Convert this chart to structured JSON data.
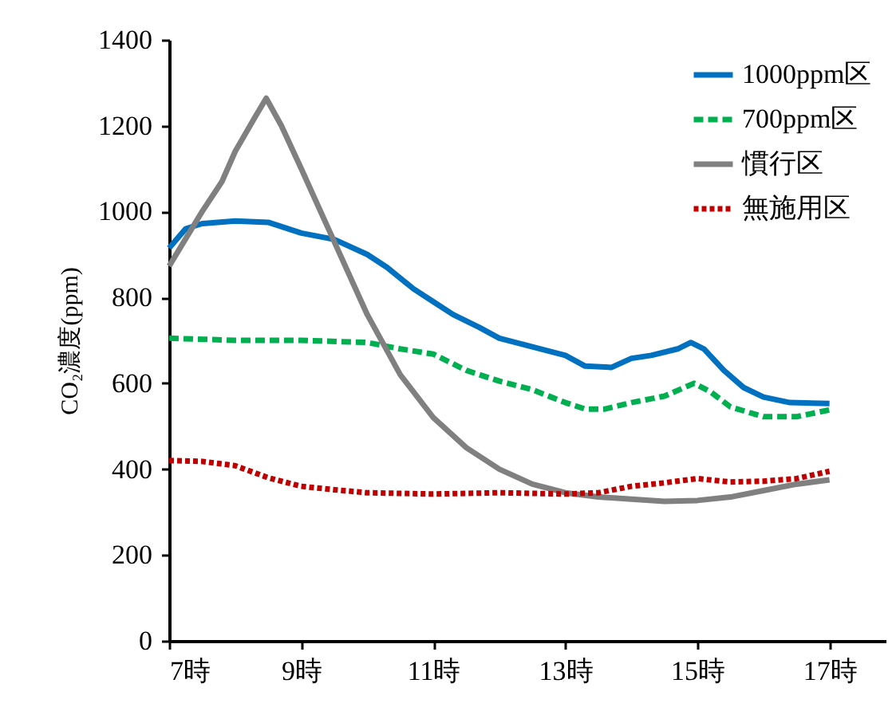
{
  "chart_data": {
    "type": "line",
    "ylabel": "CO₂濃度(ppm)",
    "xlim": [
      7,
      17.85
    ],
    "xticks": [
      {
        "value": 7,
        "label": "7時"
      },
      {
        "value": 9,
        "label": "9時"
      },
      {
        "value": 11,
        "label": "11時"
      },
      {
        "value": 13,
        "label": "13時"
      },
      {
        "value": 15,
        "label": "15時"
      },
      {
        "value": 17,
        "label": "17時"
      }
    ],
    "ylim": [
      0,
      1400
    ],
    "yticks": [
      0,
      200,
      400,
      600,
      800,
      1000,
      1200,
      1400
    ],
    "grid": false,
    "legend": "top right",
    "marker": "none",
    "series": [
      {
        "name": "1000ppm区",
        "color": "#0070c0",
        "line_style": "solid",
        "x": [
          7,
          7.25,
          7.5,
          8,
          8.5,
          9,
          9.5,
          10,
          10.3,
          10.7,
          11,
          11.3,
          11.7,
          12,
          12.5,
          13,
          13.3,
          13.7,
          14,
          14.3,
          14.7,
          14.9,
          15.1,
          15.4,
          15.7,
          16,
          16.4,
          17
        ],
        "values": [
          915,
          960,
          972,
          978,
          975,
          950,
          935,
          900,
          870,
          820,
          790,
          760,
          730,
          705,
          685,
          665,
          640,
          637,
          658,
          665,
          680,
          695,
          680,
          630,
          590,
          568,
          555,
          553
        ]
      },
      {
        "name": "700ppm区",
        "color": "#00b050",
        "line_style": "dashed",
        "x": [
          7,
          8,
          9,
          10,
          10.5,
          11,
          11.5,
          12,
          12.5,
          13,
          13.3,
          13.6,
          14,
          14.5,
          14.8,
          14.95,
          15.2,
          15.5,
          16,
          16.5,
          17
        ],
        "values": [
          705,
          700,
          700,
          695,
          680,
          668,
          630,
          605,
          585,
          555,
          540,
          540,
          555,
          570,
          590,
          600,
          580,
          545,
          522,
          522,
          538
        ]
      },
      {
        "name": "慣行区",
        "color": "#808080",
        "line_style": "solid",
        "x": [
          7,
          7.5,
          7.8,
          8,
          8.3,
          8.47,
          8.7,
          9,
          9.5,
          10,
          10.5,
          11,
          11.5,
          12,
          12.5,
          13,
          13.5,
          14,
          14.5,
          15,
          15.5,
          16,
          16.5,
          17
        ],
        "values": [
          873,
          1000,
          1070,
          1140,
          1220,
          1264,
          1200,
          1100,
          930,
          760,
          620,
          520,
          450,
          400,
          365,
          345,
          335,
          330,
          325,
          327,
          335,
          350,
          365,
          375
        ]
      },
      {
        "name": "無施用区",
        "color": "#c00000",
        "line_style": "dotted",
        "x": [
          7,
          7.5,
          8,
          8.5,
          9,
          9.5,
          10,
          11,
          12,
          13,
          13.5,
          14,
          14.5,
          15,
          15.5,
          16,
          16.5,
          17
        ],
        "values": [
          420,
          418,
          408,
          380,
          360,
          352,
          345,
          342,
          345,
          342,
          345,
          360,
          368,
          378,
          370,
          372,
          378,
          395
        ]
      }
    ]
  }
}
